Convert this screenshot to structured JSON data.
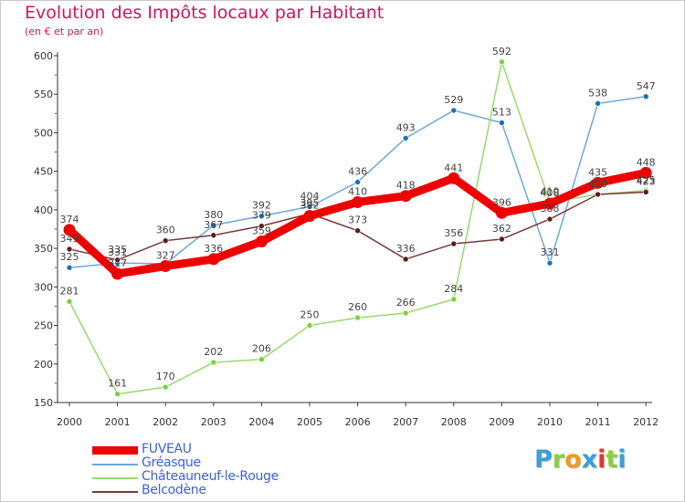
{
  "chart_data": {
    "type": "line",
    "title": "Evolution des Impôts locaux par Habitant",
    "subtitle": "(en € et par an)",
    "xlabel": "",
    "ylabel": "",
    "x": [
      "2000",
      "2001",
      "2002",
      "2003",
      "2004",
      "2005",
      "2006",
      "2007",
      "2008",
      "2009",
      "2010",
      "2011",
      "2012"
    ],
    "ylim": [
      150,
      600
    ],
    "yticks": [
      150,
      200,
      250,
      300,
      350,
      400,
      450,
      500,
      550,
      600
    ],
    "grid": false,
    "legend_position": "bottom-left",
    "series": [
      {
        "name": "FUVEAU",
        "color": "#ee0000",
        "emphasis": true,
        "values": [
          374,
          317,
          327,
          336,
          359,
          392,
          410,
          418,
          441,
          396,
          408,
          435,
          448
        ],
        "labels": [
          "374",
          "317",
          "327",
          "336",
          "359",
          "392",
          "410",
          "418",
          "441",
          "396",
          "408",
          "435",
          "448"
        ]
      },
      {
        "name": "Gréasque",
        "color": "#6fa8dc",
        "marker_color": "#1f6fb5",
        "values": [
          325,
          331,
          330,
          380,
          392,
          404,
          436,
          493,
          529,
          513,
          331,
          538,
          547
        ],
        "labels": [
          "325",
          "331",
          "",
          "380",
          "392",
          "404",
          "436",
          "493",
          "529",
          "513",
          "331",
          "538",
          "547"
        ]
      },
      {
        "name": "Châteauneuf-le-Rouge",
        "color": "#99d96b",
        "marker_color": "#7cd13a",
        "values": [
          281,
          161,
          170,
          202,
          206,
          250,
          260,
          266,
          284,
          592,
          410,
          420,
          425
        ],
        "labels": [
          "281",
          "161",
          "170",
          "202",
          "206",
          "250",
          "260",
          "266",
          "284",
          "592",
          "410",
          "420",
          "425"
        ]
      },
      {
        "name": "Belcodène",
        "color": "#7a3838",
        "marker_color": "#5a1c1c",
        "values": [
          349,
          335,
          360,
          367,
          379,
          395,
          373,
          336,
          356,
          362,
          388,
          420,
          423
        ],
        "labels": [
          "349",
          "335",
          "360",
          "367",
          "379",
          "395",
          "373",
          "336",
          "356",
          "362",
          "388",
          "420",
          "423"
        ]
      }
    ]
  },
  "logo": {
    "letters": [
      "P",
      "r",
      "o",
      "x",
      "i",
      "t",
      "i"
    ],
    "colors": [
      "#3aa0d8",
      "#8ccf3f",
      "#f29a1f",
      "#3aa0d8",
      "#e4352b",
      "#8ccf3f",
      "#3aa0d8"
    ]
  }
}
